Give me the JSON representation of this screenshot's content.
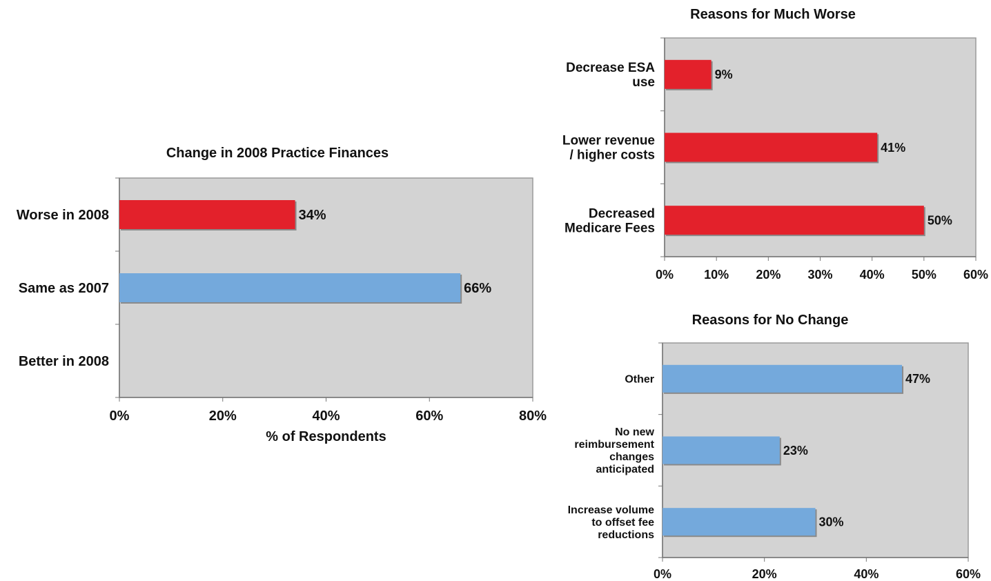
{
  "chart_data": [
    {
      "id": "finances",
      "type": "bar",
      "orientation": "horizontal",
      "title": "Change in 2008 Practice Finances",
      "xlabel": "% of Respondents",
      "ylabel": "",
      "categories": [
        [
          "Worse in 2008"
        ],
        [
          "Same as 2007"
        ],
        [
          "Better in 2008"
        ]
      ],
      "values": [
        34,
        66,
        0
      ],
      "value_labels": [
        "34%",
        "66%",
        ""
      ],
      "bar_colors": [
        "#e3212b",
        "#74a9dc",
        "#74a9dc"
      ],
      "xlim": [
        0,
        80
      ],
      "xticks": [
        0,
        20,
        40,
        60,
        80
      ],
      "xtick_labels": [
        "0%",
        "20%",
        "40%",
        "60%",
        "80%"
      ],
      "grid": false,
      "legend": "none"
    },
    {
      "id": "much-worse",
      "type": "bar",
      "orientation": "horizontal",
      "title": "Reasons for Much Worse",
      "xlabel": "",
      "ylabel": "",
      "categories": [
        [
          "Decrease ESA",
          "use"
        ],
        [
          "Lower revenue",
          "/ higher costs"
        ],
        [
          "Decreased",
          "Medicare Fees"
        ]
      ],
      "values": [
        9,
        41,
        50
      ],
      "value_labels": [
        "9%",
        "41%",
        "50%"
      ],
      "bar_colors": [
        "#e3212b",
        "#e3212b",
        "#e3212b"
      ],
      "xlim": [
        0,
        60
      ],
      "xticks": [
        0,
        10,
        20,
        30,
        40,
        50,
        60
      ],
      "xtick_labels": [
        "0%",
        "10%",
        "20%",
        "30%",
        "40%",
        "50%",
        "60%"
      ],
      "grid": false,
      "legend": "none"
    },
    {
      "id": "no-change",
      "type": "bar",
      "orientation": "horizontal",
      "title": "Reasons for No Change",
      "xlabel": "",
      "ylabel": "",
      "categories": [
        [
          "Other"
        ],
        [
          "No new",
          "reimbursement",
          "changes",
          "anticipated"
        ],
        [
          "Increase volume",
          "to offset fee",
          "reductions"
        ]
      ],
      "values": [
        47,
        23,
        30
      ],
      "value_labels": [
        "47%",
        "23%",
        "30%"
      ],
      "bar_colors": [
        "#74a9dc",
        "#74a9dc",
        "#74a9dc"
      ],
      "xlim": [
        0,
        60
      ],
      "xticks": [
        0,
        20,
        40,
        60
      ],
      "xtick_labels": [
        "0%",
        "20%",
        "40%",
        "60%"
      ],
      "grid": false,
      "legend": "none"
    }
  ]
}
